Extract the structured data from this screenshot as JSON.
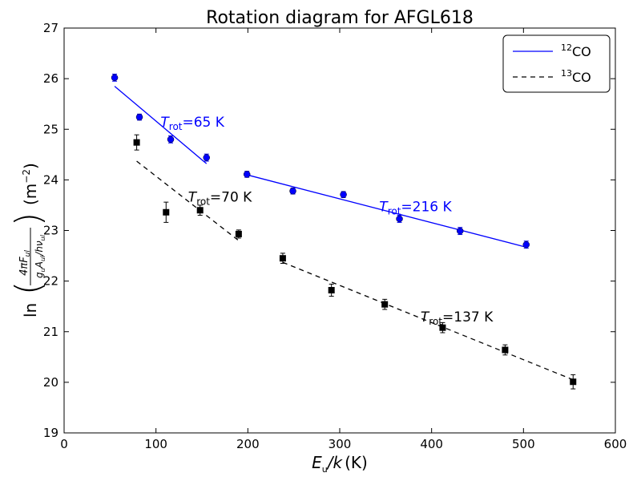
{
  "chart_data": {
    "type": "scatter",
    "title": "Rotation diagram for AFGL618",
    "xlabel": {
      "prefix": "E",
      "sub": "u",
      "mid": "/k",
      "unit": "(K)"
    },
    "ylabel": {
      "ln": "ln",
      "num": "4πF",
      "num_sub": "ul",
      "den": "g",
      "den_sub1": "u",
      "den_mid": "A",
      "den_sub2": "ul",
      "den_tail": "/hν",
      "den_sub3": "ul",
      "unit": "(m",
      "unit_sup": "−2",
      "unit_close": ")"
    },
    "xlim": [
      0,
      600
    ],
    "ylim": [
      19,
      27
    ],
    "xticks": [
      "0",
      "100",
      "200",
      "300",
      "400",
      "500",
      "600"
    ],
    "yticks": [
      "19",
      "20",
      "21",
      "22",
      "23",
      "24",
      "25",
      "26",
      "27"
    ],
    "legend": {
      "placement": "top-right",
      "entries": [
        {
          "sup": "12",
          "label": "CO",
          "style": "solid",
          "color": "#0000ff"
        },
        {
          "sup": "13",
          "label": "CO",
          "style": "dashed",
          "color": "#000000"
        }
      ]
    },
    "series": [
      {
        "name": "12CO",
        "color": "#0000ff",
        "marker": "circle",
        "points": [
          {
            "x": 55,
            "y": 26.02,
            "err": 0.07
          },
          {
            "x": 82,
            "y": 25.24,
            "err": 0.06
          },
          {
            "x": 116,
            "y": 24.8,
            "err": 0.07
          },
          {
            "x": 155,
            "y": 24.44,
            "err": 0.07
          },
          {
            "x": 199,
            "y": 24.11,
            "err": 0.06
          },
          {
            "x": 249,
            "y": 23.78,
            "err": 0.06
          },
          {
            "x": 304,
            "y": 23.71,
            "err": 0.06
          },
          {
            "x": 365,
            "y": 23.23,
            "err": 0.07
          },
          {
            "x": 431,
            "y": 22.99,
            "err": 0.07
          },
          {
            "x": 503,
            "y": 22.72,
            "err": 0.07
          }
        ],
        "fits": [
          {
            "x": [
              55,
              155
            ],
            "y": [
              25.85,
              24.32
            ],
            "label_T": "T",
            "label_sub": "rot",
            "label_val": "=65 K",
            "label_x": 105,
            "label_y": 25.05
          },
          {
            "x": [
              199,
              503
            ],
            "y": [
              24.1,
              22.67
            ],
            "label_T": "T",
            "label_sub": "rot",
            "label_val": "=216 K",
            "label_x": 343,
            "label_y": 23.38
          }
        ]
      },
      {
        "name": "13CO",
        "color": "#000000",
        "marker": "square",
        "points": [
          {
            "x": 79,
            "y": 24.74,
            "err": 0.15
          },
          {
            "x": 111,
            "y": 23.36,
            "err": 0.2
          },
          {
            "x": 148,
            "y": 23.4,
            "err": 0.1
          },
          {
            "x": 190,
            "y": 22.93,
            "err": 0.08
          },
          {
            "x": 238,
            "y": 22.45,
            "err": 0.1
          },
          {
            "x": 291,
            "y": 21.82,
            "err": 0.12
          },
          {
            "x": 349,
            "y": 21.54,
            "err": 0.1
          },
          {
            "x": 412,
            "y": 21.08,
            "err": 0.1
          },
          {
            "x": 480,
            "y": 20.64,
            "err": 0.1
          },
          {
            "x": 554,
            "y": 20.01,
            "err": 0.14
          }
        ],
        "fits": [
          {
            "x": [
              79,
              190
            ],
            "y": [
              24.37,
              22.8
            ],
            "label_T": "T",
            "label_sub": "rot",
            "label_val": "=70 K",
            "label_x": 135,
            "label_y": 23.57
          },
          {
            "x": [
              238,
              554
            ],
            "y": [
              22.37,
              20.05
            ],
            "label_T": "T",
            "label_sub": "rot",
            "label_val": "=137 K",
            "label_x": 388,
            "label_y": 21.2
          }
        ]
      }
    ]
  }
}
